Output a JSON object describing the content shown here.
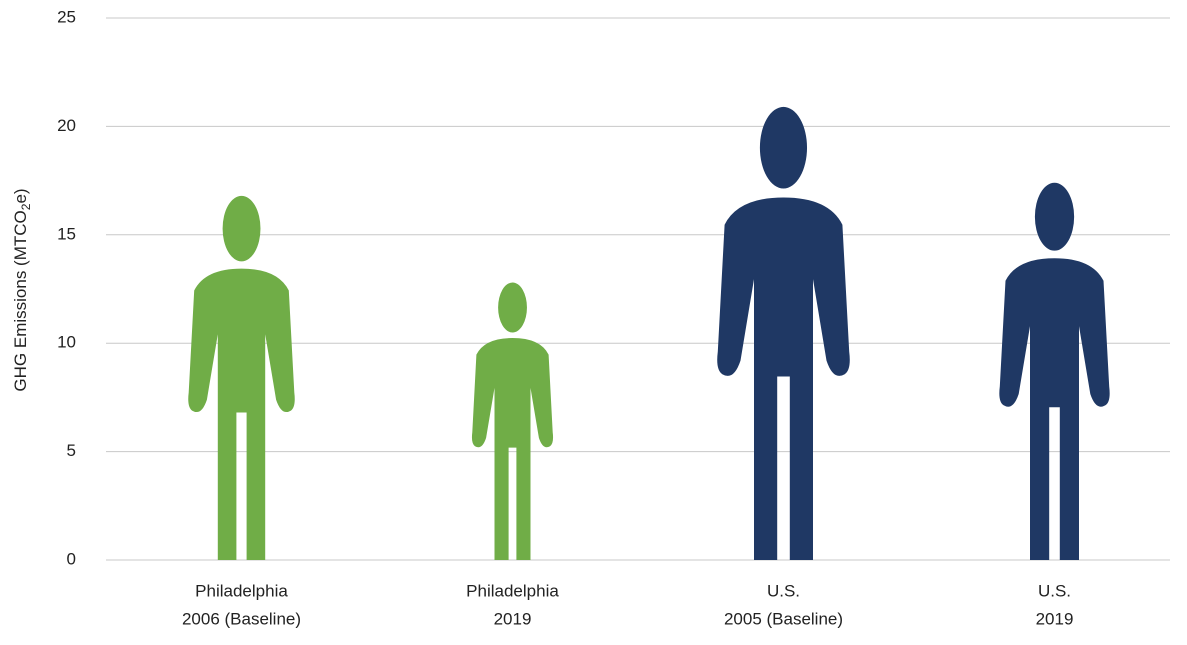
{
  "chart_data": {
    "type": "pictograph",
    "ylabel": {
      "before": "GHG Emissions (MTCO",
      "sub": "2",
      "after": "e)"
    },
    "categories": [
      [
        "Philadelphia",
        "2006 (Baseline)"
      ],
      [
        "Philadelphia",
        "2019"
      ],
      [
        "U.S.",
        "2005 (Baseline)"
      ],
      [
        "U.S.",
        "2019"
      ]
    ],
    "values": [
      16.8,
      12.8,
      20.9,
      17.4
    ],
    "colors": [
      "#70ad47",
      "#70ad47",
      "#1f3864",
      "#1f3864"
    ],
    "ylim": [
      0,
      25
    ],
    "yticks": [
      0,
      5,
      10,
      15,
      20,
      25
    ],
    "grid": true
  }
}
